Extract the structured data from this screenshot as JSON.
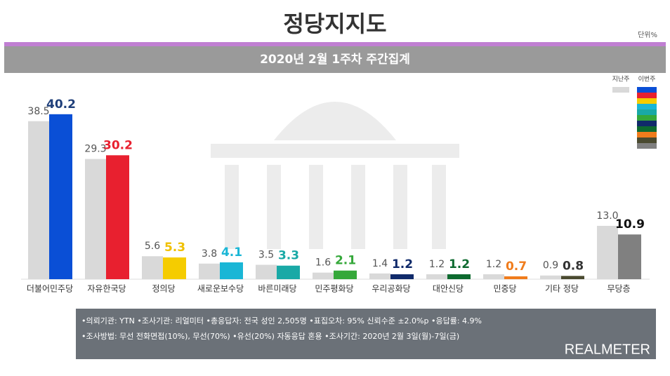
{
  "chart_data": {
    "type": "bar",
    "title": "정당지지도",
    "unit": "단위%",
    "subtitle": "2020년 2월 1주차 주간집계",
    "categories": [
      "더불어민주당",
      "자유한국당",
      "정의당",
      "새로운보수당",
      "바른미래당",
      "민주평화당",
      "우리공화당",
      "대안신당",
      "민중당",
      "기타 정당",
      "무당층"
    ],
    "series": [
      {
        "name": "지난주",
        "color": "#d9d9d9",
        "label_color": "#555555",
        "values": [
          38.5,
          29.3,
          5.6,
          3.8,
          3.5,
          1.6,
          1.4,
          1.2,
          1.2,
          0.9,
          13
        ],
        "value_labels": [
          "38.5",
          "29.3",
          "5.6",
          "3.8",
          "3.5",
          "1.6",
          "1.4",
          "1.2",
          "1.2",
          "0.9",
          "13.0"
        ]
      },
      {
        "name": "이번주",
        "colors": [
          "#0a4fd6",
          "#e8202f",
          "#f5cc00",
          "#1ab6d6",
          "#19a9a6",
          "#35a83a",
          "#102a6a",
          "#0d6a2f",
          "#f07c1c",
          "#4a4a30",
          "#808080"
        ],
        "label_colors": [
          "#1f3f7a",
          "#e8202f",
          "#f0c000",
          "#1ab6d6",
          "#19a9a6",
          "#35a83a",
          "#102a6a",
          "#0d6a2f",
          "#f07c1c",
          "#333333",
          "#111111"
        ],
        "values": [
          40.2,
          30.2,
          5.3,
          4.1,
          3.3,
          2.1,
          1.2,
          1.2,
          0.7,
          0.8,
          10.9
        ]
      }
    ],
    "notes": [
      "•의뢰기관: YTN •조사기관: 리얼미터 •총응답자: 전국 성인 2,505명 •표집오차: 95% 신뢰수준 ±2.0%p •응답률: 4.9%",
      "•조사방법: 무선 전화면접(10%), 무선(70%) •유선(20%) 자동응답 혼용 •조사기간: 2020년 2월 3일(월)-7일(금)"
    ],
    "brand": "REALMETER"
  }
}
